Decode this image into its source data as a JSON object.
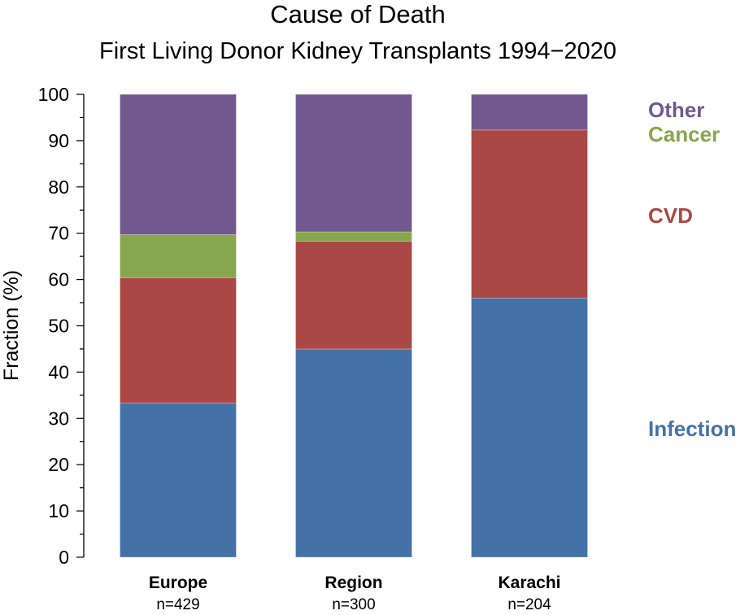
{
  "chart_data": {
    "type": "bar",
    "stacked": true,
    "title": "Cause of Death",
    "subtitle": "First Living Donor Kidney Transplants 1994−2020",
    "xlabel": "",
    "ylabel": "Fraction (%)",
    "ylim": [
      0,
      100
    ],
    "yticks": [
      "0",
      "10",
      "20",
      "30",
      "40",
      "50",
      "60",
      "70",
      "80",
      "90",
      "100"
    ],
    "grid": false,
    "legend_position": "right, labels aligned to segments",
    "categories": [
      "Europe",
      "Region",
      "Karachi"
    ],
    "category_counts": [
      "n=429",
      "n=300",
      "n=204"
    ],
    "series": [
      {
        "name": "Infection",
        "color": "#4472a8",
        "values": [
          33.3,
          45.0,
          56.0
        ]
      },
      {
        "name": "CVD",
        "color": "#aa4845",
        "values": [
          27.1,
          23.3,
          36.3
        ]
      },
      {
        "name": "Cancer",
        "color": "#88a64d",
        "values": [
          9.3,
          2.0,
          0.0
        ]
      },
      {
        "name": "Other",
        "color": "#71598f",
        "values": [
          30.3,
          29.7,
          7.7
        ]
      }
    ]
  }
}
